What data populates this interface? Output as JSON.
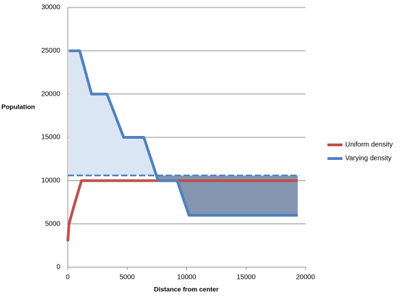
{
  "chart_data": {
    "type": "line",
    "x_label": "Distance from center",
    "y_label": "Population",
    "xlim": [
      0,
      20000
    ],
    "xticks": [
      0,
      5000,
      10000,
      15000,
      20000
    ],
    "ylim": [
      0,
      30000
    ],
    "yticks": [
      0,
      5000,
      10000,
      15000,
      20000,
      25000,
      30000
    ],
    "grid": true,
    "legend": "right",
    "hline": 10600,
    "series": [
      {
        "name": "Uniform density",
        "color": "#c0504d",
        "x": [
          0,
          100,
          500,
          1150,
          19350
        ],
        "values": [
          3000,
          5000,
          7000,
          10000,
          10000
        ]
      },
      {
        "name": "Varying density",
        "color": "#4f81bd",
        "x": [
          100,
          1000,
          2000,
          3300,
          4700,
          6400,
          7600,
          9200,
          10200,
          19350
        ],
        "values": [
          25000,
          25000,
          20000,
          20000,
          15000,
          15000,
          10000,
          10000,
          6000,
          6000
        ]
      }
    ]
  }
}
